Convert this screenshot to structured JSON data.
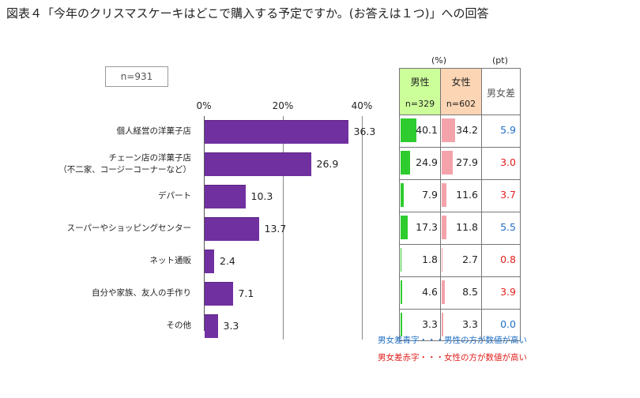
{
  "title": "図表４「今年のクリスマスケーキはどこで購入する予定ですか。(お答えは１つ)」への回答",
  "sample": "n=931",
  "chart_data": {
    "type": "bar",
    "orientation": "horizontal",
    "title": "図表４「今年のクリスマスケーキはどこで購入する予定ですか。(お答えは１つ)」への回答",
    "xlim": [
      0,
      40
    ],
    "ticks": [
      "0%",
      "20%",
      "40%"
    ],
    "categories": [
      [
        "個人経営の洋菓子店"
      ],
      [
        "チェーン店の洋菓子店",
        "（不二家、コージーコーナーなど）"
      ],
      [
        "デパート"
      ],
      [
        "スーパーやショッピングセンター"
      ],
      [
        "ネット通販"
      ],
      [
        "自分や家族、友人の手作り"
      ],
      [
        "その他"
      ]
    ],
    "values": [
      36.3,
      26.9,
      10.3,
      13.7,
      2.4,
      7.1,
      3.3
    ],
    "bar_color": "#7030a0"
  },
  "table": {
    "unit_pct": "(%)",
    "unit_pt": "(pt)",
    "male_label": "男性",
    "male_n": "n=329",
    "female_label": "女性",
    "female_n": "n=602",
    "diff_label": "男女差",
    "male": [
      40.1,
      24.9,
      7.9,
      17.3,
      1.8,
      4.6,
      3.3
    ],
    "female": [
      34.2,
      27.9,
      11.6,
      11.8,
      2.7,
      8.5,
      3.3
    ],
    "diff": [
      {
        "text": "5.9",
        "color": "#1f6fc5"
      },
      {
        "text": "3.0",
        "color": "#e0201c"
      },
      {
        "text": "3.7",
        "color": "#e0201c"
      },
      {
        "text": "5.5",
        "color": "#1f6fc5"
      },
      {
        "text": "0.8",
        "color": "#e0201c"
      },
      {
        "text": "3.9",
        "color": "#e0201c"
      },
      {
        "text": "0.0",
        "color": "#1f6fc5"
      }
    ],
    "male_header_color": "#ccff99",
    "female_header_color": "#fcd5b4",
    "male_bar_color": "#2ecc2e",
    "female_bar_color": "#f4a3ab"
  },
  "notes": {
    "blue": "男女差青字・・・男性の方が数値が高い",
    "red": "男女差赤字・・・女性の方が数値が高い"
  }
}
